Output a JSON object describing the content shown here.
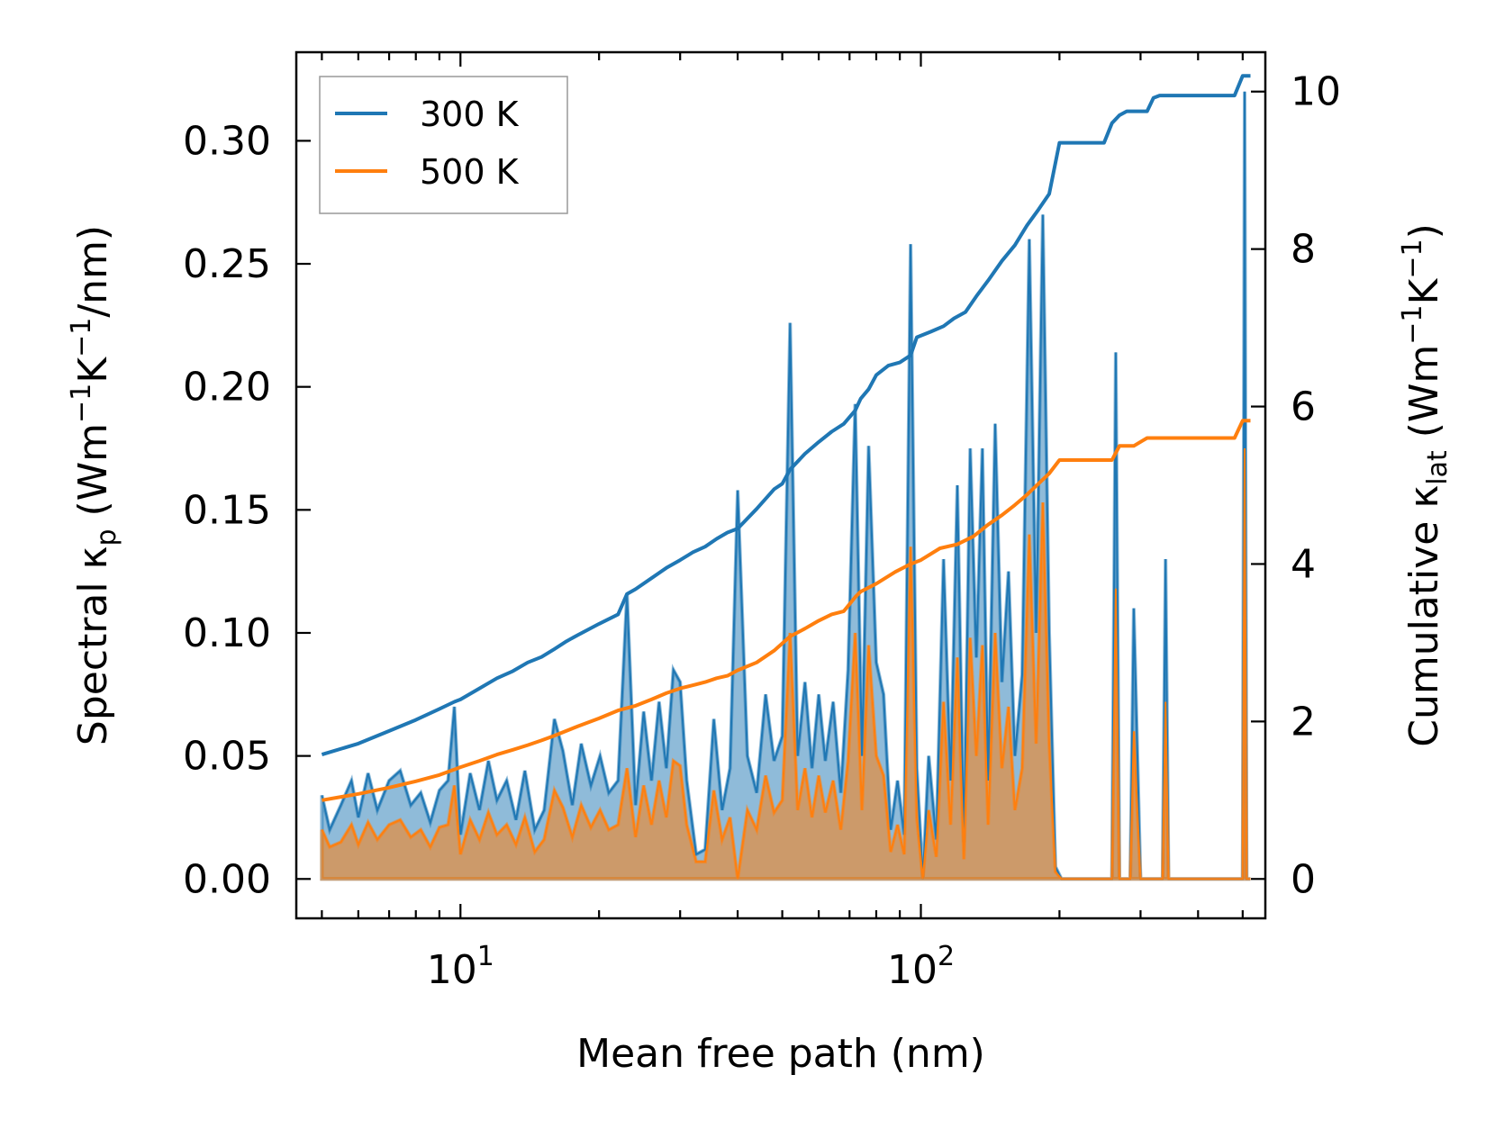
{
  "chart_data": {
    "type": "line",
    "x_scale": "log",
    "xlabel": "Mean free path (nm)",
    "xlim": [
      4.4,
      560
    ],
    "x_tick_labels": [
      {
        "value": 10,
        "base": "10",
        "exp": "1"
      },
      {
        "value": 100,
        "base": "10",
        "exp": "2"
      }
    ],
    "ylabel_left": {
      "main": "Spectral κ",
      "sub": "p",
      "units": " (Wm",
      "e1": "−1",
      "k": "K",
      "e2": "−1",
      "end": "/nm)"
    },
    "ylim_left": [
      -0.016,
      0.336
    ],
    "left_ticks": [
      0.0,
      0.05,
      0.1,
      0.15,
      0.2,
      0.25,
      0.3
    ],
    "left_tick_labels": [
      "0.00",
      "0.05",
      "0.10",
      "0.15",
      "0.20",
      "0.25",
      "0.30"
    ],
    "ylabel_right": {
      "main": "Cumulative κ",
      "sub": "lat",
      "units": " (Wm",
      "e1": "−1",
      "k": "K",
      "e2": "−1",
      "end": ")"
    },
    "ylim_right": [
      -0.5,
      10.5
    ],
    "right_ticks": [
      0,
      2,
      4,
      6,
      8,
      10
    ],
    "right_tick_labels": [
      "0",
      "2",
      "4",
      "6",
      "8",
      "10"
    ],
    "legend": {
      "position": "top-left",
      "entries": [
        "300 K",
        "500 K"
      ]
    },
    "colors": {
      "300 K": "#1f77b4",
      "500 K": "#ff7f0e"
    },
    "series": [
      {
        "name": "300 K",
        "axis": "left",
        "kind": "spectral",
        "x": [
          5,
          5.2,
          5.5,
          5.8,
          6.0,
          6.3,
          6.6,
          7.0,
          7.4,
          7.8,
          8.2,
          8.6,
          9.0,
          9.4,
          9.7,
          10.0,
          10.5,
          11.0,
          11.5,
          12.0,
          12.6,
          13.2,
          13.8,
          14.5,
          15.2,
          16.0,
          16.7,
          17.5,
          18.3,
          19.2,
          20.1,
          21.0,
          22.0,
          23.0,
          24.0,
          25.0,
          26.0,
          27.0,
          28.0,
          29.0,
          30.0,
          31.0,
          32.5,
          34.0,
          35.5,
          37.0,
          38.5,
          40.0,
          42.0,
          44.0,
          46.0,
          48.0,
          50.0,
          52.0,
          54.0,
          56.0,
          58.0,
          60.0,
          62.0,
          64.5,
          67.0,
          69.5,
          72.0,
          74.5,
          77.0,
          80.0,
          83.0,
          86.0,
          89.0,
          92.0,
          95.0,
          98.0,
          101,
          104,
          108,
          112,
          116,
          120,
          124,
          128,
          132,
          136,
          140,
          145,
          150,
          155,
          160,
          166,
          172,
          178,
          184,
          190,
          196,
          202,
          208,
          214,
          220,
          260,
          265,
          270,
          275,
          280,
          285,
          290,
          300,
          320,
          330,
          335,
          340,
          345,
          355,
          490,
          500,
          505,
          510,
          515,
          520
        ],
        "values": [
          0.034,
          0.02,
          0.03,
          0.04,
          0.025,
          0.043,
          0.028,
          0.04,
          0.044,
          0.03,
          0.035,
          0.023,
          0.036,
          0.04,
          0.07,
          0.018,
          0.043,
          0.028,
          0.048,
          0.032,
          0.04,
          0.024,
          0.044,
          0.02,
          0.028,
          0.065,
          0.052,
          0.03,
          0.055,
          0.038,
          0.05,
          0.035,
          0.04,
          0.116,
          0.03,
          0.068,
          0.04,
          0.072,
          0.045,
          0.085,
          0.08,
          0.04,
          0.01,
          0.012,
          0.065,
          0.028,
          0.045,
          0.158,
          0.05,
          0.035,
          0.075,
          0.048,
          0.058,
          0.226,
          0.05,
          0.08,
          0.045,
          0.075,
          0.048,
          0.072,
          0.035,
          0.085,
          0.193,
          0.05,
          0.176,
          0.088,
          0.075,
          0.02,
          0.04,
          0.018,
          0.258,
          0.045,
          0.0,
          0.05,
          0.016,
          0.13,
          0.04,
          0.16,
          0.015,
          0.175,
          0.09,
          0.175,
          0.04,
          0.185,
          0.08,
          0.125,
          0.05,
          0.083,
          0.26,
          0.1,
          0.27,
          0.1,
          0.005,
          0.0,
          0.0,
          0.0,
          0.0,
          0.0,
          0.214,
          0.0,
          0.0,
          0.0,
          0.0,
          0.11,
          0.0,
          0.0,
          0.0,
          0.0,
          0.13,
          0.0,
          0.0,
          0.0,
          0.0,
          0.32,
          0.0,
          0.0,
          0.0
        ]
      },
      {
        "name": "500 K",
        "axis": "left",
        "kind": "spectral",
        "x": [
          5,
          5.2,
          5.5,
          5.8,
          6.0,
          6.3,
          6.6,
          7.0,
          7.4,
          7.8,
          8.2,
          8.6,
          9.0,
          9.4,
          9.7,
          10.0,
          10.5,
          11.0,
          11.5,
          12.0,
          12.6,
          13.2,
          13.8,
          14.5,
          15.2,
          16.0,
          16.7,
          17.5,
          18.3,
          19.2,
          20.1,
          21.0,
          22.0,
          23.0,
          24.0,
          25.0,
          26.0,
          27.0,
          28.0,
          29.0,
          30.0,
          31.0,
          32.5,
          34.0,
          35.5,
          37.0,
          38.5,
          40.0,
          42.0,
          44.0,
          46.0,
          48.0,
          50.0,
          52.0,
          54.0,
          56.0,
          58.0,
          60.0,
          62.0,
          64.5,
          67.0,
          69.5,
          72.0,
          74.5,
          77.0,
          80.0,
          83.0,
          86.0,
          89.0,
          92.0,
          95.0,
          98.0,
          101,
          104,
          108,
          112,
          116,
          120,
          124,
          128,
          132,
          136,
          140,
          145,
          150,
          155,
          160,
          166,
          172,
          178,
          184,
          190,
          196,
          202,
          208,
          214,
          220,
          260,
          265,
          270,
          275,
          280,
          285,
          290,
          300,
          320,
          330,
          335,
          340,
          345,
          355,
          490,
          500,
          505,
          510,
          515,
          520
        ],
        "values": [
          0.02,
          0.013,
          0.015,
          0.022,
          0.014,
          0.023,
          0.016,
          0.022,
          0.024,
          0.017,
          0.02,
          0.013,
          0.021,
          0.022,
          0.038,
          0.01,
          0.024,
          0.016,
          0.027,
          0.018,
          0.022,
          0.014,
          0.025,
          0.011,
          0.016,
          0.036,
          0.029,
          0.017,
          0.03,
          0.021,
          0.028,
          0.02,
          0.022,
          0.045,
          0.017,
          0.038,
          0.022,
          0.04,
          0.025,
          0.048,
          0.046,
          0.022,
          0.007,
          0.007,
          0.036,
          0.016,
          0.025,
          0.0,
          0.028,
          0.02,
          0.042,
          0.027,
          0.032,
          0.1,
          0.028,
          0.045,
          0.025,
          0.042,
          0.027,
          0.04,
          0.02,
          0.048,
          0.1,
          0.028,
          0.095,
          0.05,
          0.042,
          0.011,
          0.022,
          0.01,
          0.135,
          0.025,
          0.0,
          0.028,
          0.009,
          0.072,
          0.022,
          0.09,
          0.008,
          0.098,
          0.05,
          0.095,
          0.022,
          0.1,
          0.045,
          0.07,
          0.028,
          0.045,
          0.14,
          0.055,
          0.153,
          0.055,
          0.003,
          0.0,
          0.0,
          0.0,
          0.0,
          0.0,
          0.118,
          0.0,
          0.0,
          0.0,
          0.0,
          0.06,
          0.0,
          0.0,
          0.0,
          0.0,
          0.072,
          0.0,
          0.0,
          0.0,
          0.0,
          0.175,
          0.0,
          0.0,
          0.0
        ]
      },
      {
        "name": "300 K",
        "axis": "right",
        "kind": "cumulative",
        "x": [
          5,
          6,
          7,
          8,
          9,
          9.7,
          10,
          11,
          12,
          13,
          14,
          15,
          16,
          17,
          18,
          20,
          22,
          23,
          24,
          26,
          28,
          30,
          32,
          34,
          36,
          38,
          40,
          44,
          48,
          50,
          52,
          56,
          60,
          64,
          68,
          72,
          74,
          77,
          80,
          85,
          90,
          95,
          98,
          105,
          112,
          118,
          125,
          132,
          140,
          150,
          160,
          170,
          180,
          190,
          200,
          215,
          250,
          260,
          270,
          280,
          310,
          320,
          330,
          340,
          480,
          500,
          510,
          520
        ],
        "values": [
          1.58,
          1.72,
          1.88,
          2.02,
          2.16,
          2.25,
          2.28,
          2.42,
          2.55,
          2.64,
          2.75,
          2.82,
          2.92,
          3.02,
          3.1,
          3.24,
          3.36,
          3.62,
          3.68,
          3.82,
          3.95,
          4.05,
          4.15,
          4.22,
          4.32,
          4.4,
          4.45,
          4.7,
          4.95,
          5.02,
          5.2,
          5.4,
          5.55,
          5.68,
          5.78,
          5.95,
          6.1,
          6.22,
          6.4,
          6.52,
          6.56,
          6.65,
          6.88,
          6.95,
          7.02,
          7.12,
          7.2,
          7.4,
          7.6,
          7.85,
          8.05,
          8.3,
          8.5,
          8.7,
          9.35,
          9.35,
          9.35,
          9.6,
          9.7,
          9.75,
          9.75,
          9.92,
          9.95,
          9.95,
          9.95,
          10.2,
          10.2,
          10.2
        ]
      },
      {
        "name": "500 K",
        "axis": "right",
        "kind": "cumulative",
        "x": [
          5,
          6,
          7,
          8,
          9,
          10,
          11,
          12,
          13,
          14,
          15,
          16,
          18,
          20,
          22,
          24,
          26,
          28,
          30,
          32,
          34,
          36,
          38,
          40,
          44,
          48,
          52,
          56,
          60,
          64,
          68,
          72,
          74,
          80,
          88,
          95,
          100,
          110,
          120,
          130,
          140,
          150,
          160,
          170,
          180,
          190,
          200,
          215,
          260,
          270,
          290,
          310,
          330,
          340,
          480,
          500,
          510,
          520
        ],
        "values": [
          1.0,
          1.08,
          1.16,
          1.24,
          1.32,
          1.42,
          1.5,
          1.58,
          1.64,
          1.7,
          1.76,
          1.82,
          1.94,
          2.04,
          2.14,
          2.2,
          2.28,
          2.36,
          2.42,
          2.46,
          2.5,
          2.55,
          2.58,
          2.65,
          2.75,
          2.9,
          3.08,
          3.18,
          3.28,
          3.36,
          3.4,
          3.58,
          3.65,
          3.75,
          3.9,
          4.0,
          4.05,
          4.2,
          4.25,
          4.35,
          4.5,
          4.62,
          4.75,
          4.88,
          5.02,
          5.15,
          5.32,
          5.32,
          5.32,
          5.5,
          5.5,
          5.6,
          5.6,
          5.6,
          5.6,
          5.82,
          5.82,
          5.82
        ]
      }
    ]
  }
}
